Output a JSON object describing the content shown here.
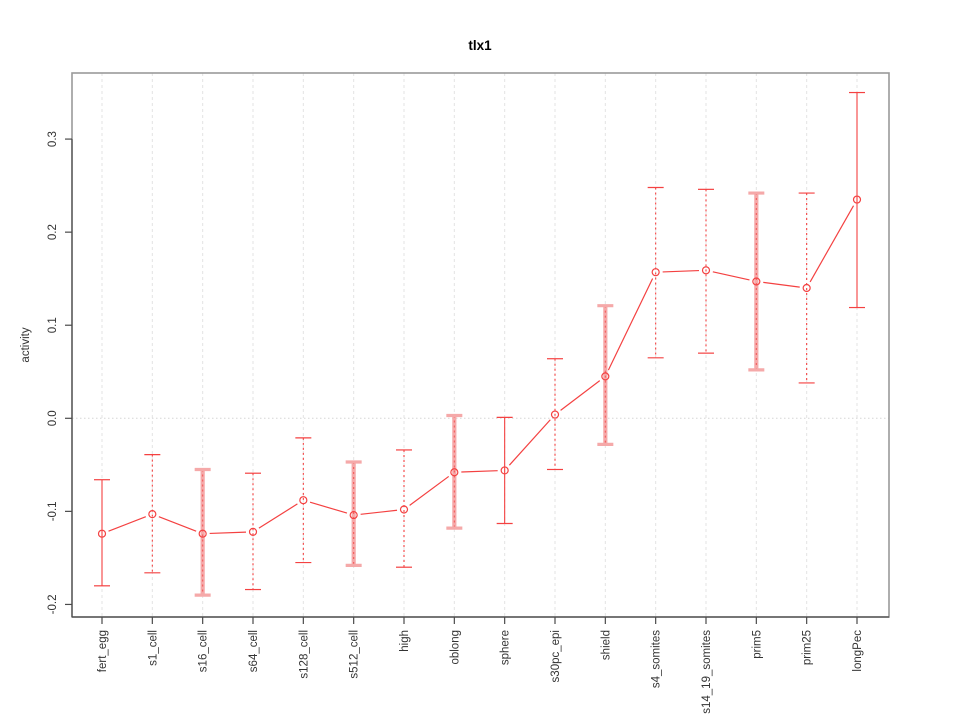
{
  "chart_data": {
    "type": "line",
    "title": "tlx1",
    "xlabel": "",
    "ylabel": "activity",
    "legend": "none",
    "grid": "vertical dashed gridline at each category; dotted horizontal line at y=0",
    "ylim": [
      -0.2135,
      0.371
    ],
    "y_ticks": [
      0.3,
      0.2,
      0.1,
      0.0,
      -0.1,
      -0.2
    ],
    "categories": [
      "fert_egg",
      "s1_cell",
      "s16_cell",
      "s64_cell",
      "s128_cell",
      "s512_cell",
      "high",
      "oblong",
      "sphere",
      "s30pc_epi",
      "shield",
      "s4_somites",
      "s14_19_somites",
      "prim5",
      "prim25",
      "longPec"
    ],
    "series": [
      {
        "name": "tlx1",
        "marker": "open-circle",
        "values": [
          -0.124,
          -0.103,
          -0.124,
          -0.122,
          -0.088,
          -0.104,
          -0.098,
          -0.058,
          -0.056,
          0.004,
          0.045,
          0.157,
          0.159,
          0.147,
          0.14,
          0.235
        ],
        "error_upper": [
          -0.066,
          -0.039,
          -0.055,
          -0.059,
          -0.021,
          -0.047,
          -0.034,
          0.003,
          0.001,
          0.064,
          0.121,
          0.248,
          0.246,
          0.242,
          0.242,
          0.35
        ],
        "error_lower": [
          -0.18,
          -0.166,
          -0.19,
          -0.184,
          -0.155,
          -0.158,
          -0.16,
          -0.118,
          -0.113,
          -0.055,
          -0.028,
          0.065,
          0.07,
          0.052,
          0.038,
          0.119
        ],
        "whisker_styles": [
          "solid",
          "dashed",
          "thick",
          "dashed",
          "dashed",
          "thick",
          "dashed",
          "thick",
          "solid",
          "dashed",
          "thick",
          "dashed",
          "dashed",
          "thick",
          "dashed",
          "solid"
        ]
      }
    ],
    "colors": {
      "series": "#f44141",
      "band": "#f5a9a9",
      "grid": "#e3e3e3",
      "zero_line": "#d5d5d5",
      "box": "#9a9a9a",
      "axis": "#4a4a4a",
      "text": "#333333",
      "title": "#000000"
    }
  }
}
